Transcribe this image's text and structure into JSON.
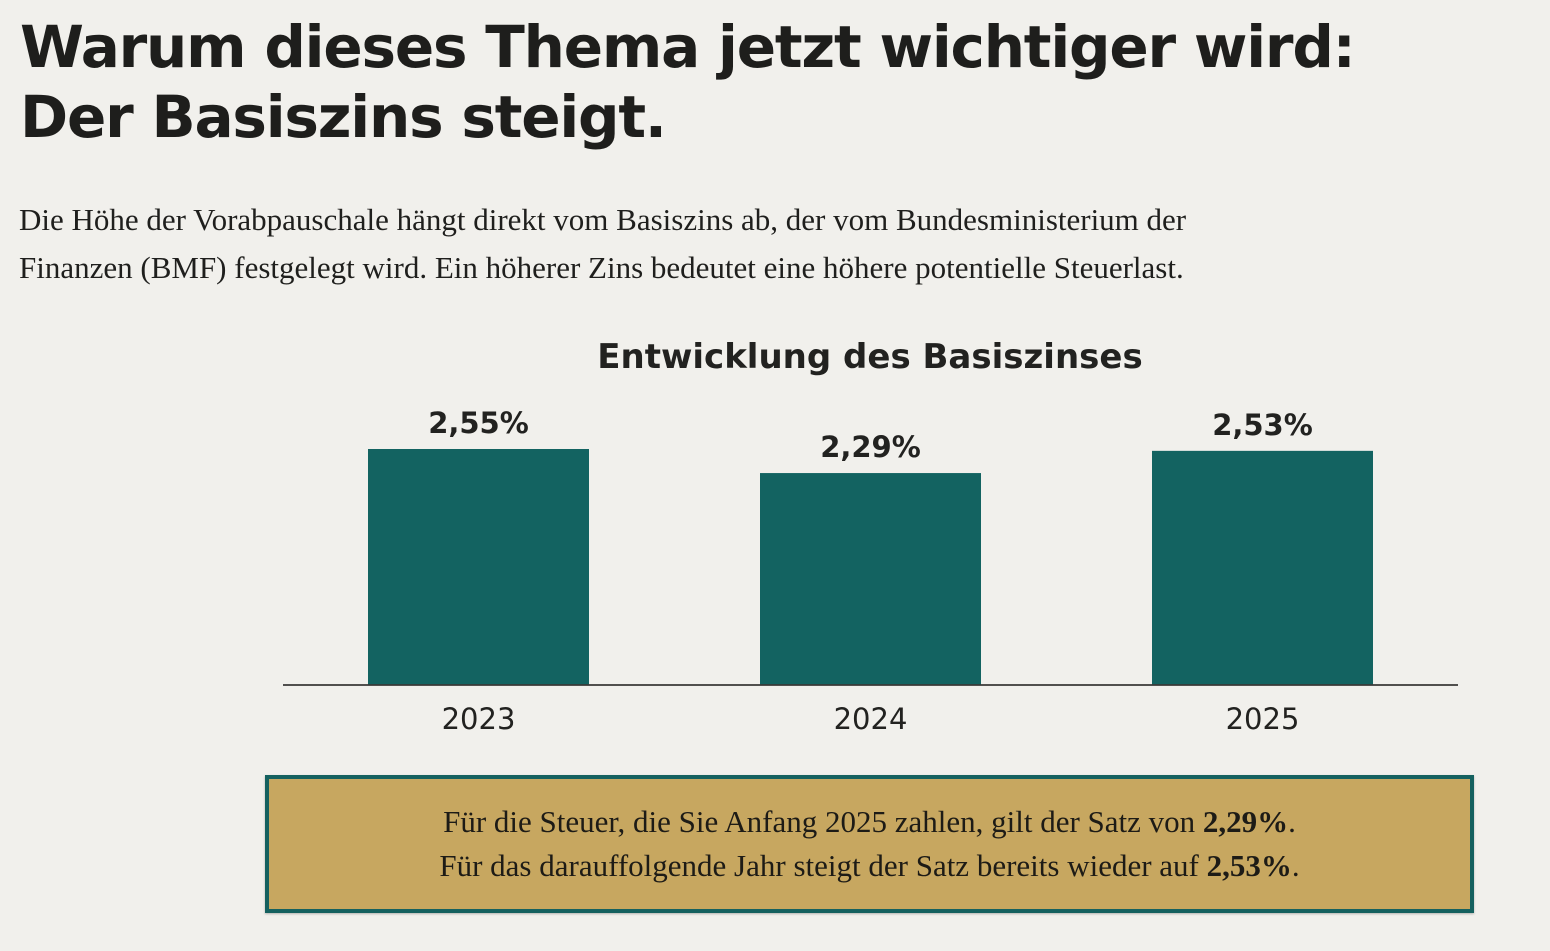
{
  "heading": {
    "line1": "Warum dieses Thema jetzt wichtiger wird:",
    "line2": "Der Basiszins steigt."
  },
  "intro": {
    "line1": "Die Höhe der Vorabpauschale hängt direkt vom Basiszins ab, der vom Bundesministerium der",
    "line2": "Finanzen (BMF) festgelegt wird. Ein höherer Zins bedeutet eine höhere potentielle Steuerlast."
  },
  "colors": {
    "bar": "#136361",
    "axis": "#3a3a38",
    "box_background": "#c7a760",
    "box_border": "#15615f"
  },
  "chart_data": {
    "type": "bar",
    "title": "Entwicklung des Basiszinses",
    "categories": [
      "2023",
      "2024",
      "2025"
    ],
    "values": [
      2.55,
      2.29,
      2.53
    ],
    "value_labels": [
      "2,55%",
      "2,29%",
      "2,53%"
    ],
    "unit": "%",
    "xlabel": "",
    "ylabel": "",
    "ylim": [
      0,
      2.55
    ],
    "grid": false,
    "legend": "none"
  },
  "note": {
    "line1_prefix": "Für die Steuer, die Sie Anfang 2025 zahlen, gilt der Satz von ",
    "line1_value": "2,29%",
    "line1_suffix": ".",
    "line2_prefix": "Für das darauffolgende Jahr steigt der Satz bereits wieder auf ",
    "line2_value": "2,53%",
    "line2_suffix": "."
  }
}
